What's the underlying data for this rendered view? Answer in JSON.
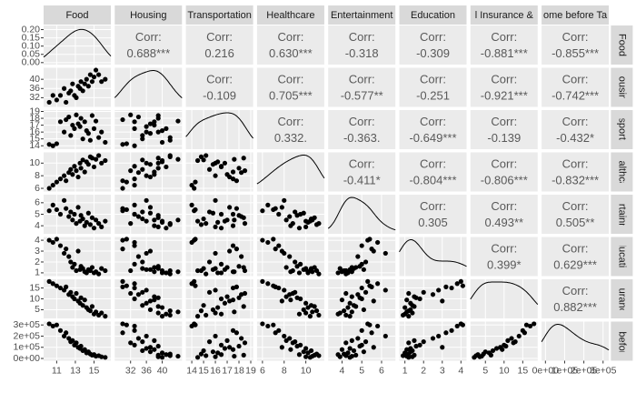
{
  "chart_data": {
    "type": "scatter_matrix",
    "corr_label": "Corr:",
    "density_ylim": [
      -0.012,
      0.225
    ],
    "density_yticks": [
      {
        "value": 0,
        "label": "0.00"
      },
      {
        "value": 0.05,
        "label": "0.05"
      },
      {
        "value": 0.1,
        "label": "0.10"
      },
      {
        "value": 0.15,
        "label": "0.15"
      },
      {
        "value": 0.2,
        "label": "0.20"
      }
    ],
    "variables": [
      {
        "name": "Food",
        "lim": [
          9.6,
          16.8
        ],
        "ticks": [
          11,
          13,
          15
        ],
        "values": [
          10.2,
          10.6,
          11.0,
          11.4,
          11.8,
          12.0,
          12.3,
          12.5,
          12.7,
          12.9,
          13.1,
          13.3,
          13.5,
          13.6,
          13.8,
          14.0,
          14.2,
          14.4,
          14.6,
          14.8,
          15.0,
          15.2,
          15.5,
          15.8,
          16.2
        ]
      },
      {
        "name": "Housing",
        "lim": [
          28,
          45
        ],
        "ticks": [
          32,
          36,
          40
        ],
        "values": [
          30,
          33,
          31,
          33,
          36,
          30,
          34,
          35,
          38,
          33,
          32,
          37,
          36,
          39,
          35,
          38,
          40,
          37,
          42,
          39,
          41,
          44,
          42,
          39,
          40
        ]
      },
      {
        "name": "Transportation",
        "lim": [
          13.5,
          19.2
        ],
        "ticks": [
          14,
          15,
          16,
          17,
          18,
          19
        ],
        "values": [
          14.2,
          14.0,
          14.3,
          17.5,
          16.0,
          17.8,
          18.2,
          15.5,
          17.0,
          16.5,
          18.5,
          17.2,
          16.8,
          18.0,
          15.0,
          17.5,
          16.2,
          15.8,
          14.8,
          18.4,
          16.5,
          17.6,
          15.2,
          16.0,
          14.5
        ]
      },
      {
        "name": "Healthcare",
        "lim": [
          5.5,
          11.7
        ],
        "ticks": [
          6,
          8,
          10
        ],
        "values": [
          6.0,
          6.5,
          7.0,
          7.5,
          8.0,
          7.2,
          8.5,
          9.0,
          8.2,
          9.5,
          8.8,
          7.8,
          10.0,
          9.2,
          10.5,
          8.6,
          10.2,
          9.8,
          11.0,
          10.8,
          9.4,
          10.6,
          11.2,
          10.0,
          10.4
        ]
      },
      {
        "name": "Entertainment",
        "lim": [
          3.3,
          6.7
        ],
        "ticks": [
          4,
          5,
          6
        ],
        "values": [
          5.3,
          5.8,
          5.4,
          5.0,
          6.2,
          5.5,
          4.8,
          5.2,
          4.5,
          5.0,
          4.2,
          5.6,
          4.4,
          4.9,
          4.6,
          4.0,
          4.3,
          5.1,
          4.1,
          4.7,
          3.8,
          4.5,
          4.2,
          3.9,
          4.4
        ]
      },
      {
        "name": "Education",
        "lim": [
          0.7,
          4.3
        ],
        "ticks": [
          1,
          2,
          3,
          4
        ],
        "values": [
          4.0,
          3.8,
          4.1,
          3.5,
          2.8,
          3.2,
          2.5,
          2.0,
          1.5,
          1.8,
          1.2,
          3.0,
          1.3,
          1.6,
          1.4,
          1.1,
          1.0,
          1.3,
          1.2,
          1.5,
          1.0,
          1.1,
          0.9,
          1.4,
          1.2
        ]
      },
      {
        "name": "l Insurance &",
        "lim": [
          1,
          19
        ],
        "ticks": [
          5,
          10,
          15
        ],
        "values": [
          18,
          17,
          16,
          15,
          14,
          15.5,
          12,
          13,
          11,
          10,
          12.5,
          9,
          8,
          10.5,
          7,
          9.5,
          6,
          5,
          4.5,
          6.5,
          3,
          4,
          2.5,
          3.5,
          2
        ]
      },
      {
        "name": "ome before Ta",
        "lim": [
          -20000,
          330000
        ],
        "ticks": [
          {
            "value": 0,
            "label": "0e+00"
          },
          {
            "value": 100000,
            "label": "1e+05"
          },
          {
            "value": 200000,
            "label": "2e+05"
          },
          {
            "value": 300000,
            "label": "3e+05"
          }
        ],
        "values": [
          310000,
          290000,
          300000,
          250000,
          200000,
          230000,
          180000,
          150000,
          160000,
          120000,
          140000,
          100000,
          90000,
          110000,
          70000,
          80000,
          50000,
          60000,
          40000,
          30000,
          35000,
          20000,
          25000,
          15000,
          10000
        ]
      }
    ],
    "correlations": [
      [
        "0.688***",
        "0.216",
        "0.630***",
        "-0.318",
        "-0.309",
        "-0.881***",
        "-0.855***"
      ],
      [
        "-0.109",
        "0.705***",
        "-0.577**",
        "-0.251",
        "-0.921***",
        "-0.742***"
      ],
      [
        "0.332.",
        "-0.363.",
        "-0.649***",
        "-0.139",
        "-0.432*"
      ],
      [
        "-0.411*",
        "-0.804***",
        "-0.806***",
        "-0.832***"
      ],
      [
        "0.305",
        "0.493**",
        "0.505**"
      ],
      [
        "0.399*",
        "0.629***"
      ],
      [
        "0.882***"
      ]
    ],
    "point_color": "#000000",
    "panel_color": "#ebebeb",
    "strip_color": "#d9d9d9"
  }
}
